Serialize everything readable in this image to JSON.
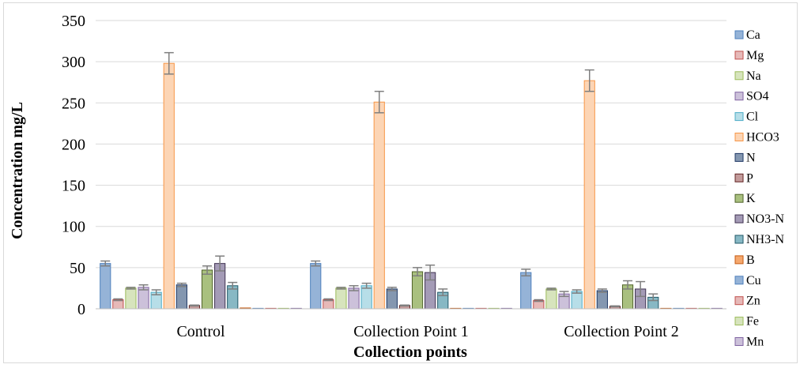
{
  "chart_data": {
    "type": "bar",
    "title": "",
    "xlabel": "Collection points",
    "ylabel": "Concentration mg/L",
    "ylim": [
      0,
      350
    ],
    "yticks": [
      "0",
      "50",
      "100",
      "150",
      "200",
      "250",
      "300",
      "350"
    ],
    "grid": true,
    "legend_position": "right",
    "error_bars": true,
    "categories": [
      "Control",
      "Collection Point 1",
      "Collection Point 2"
    ],
    "series": [
      {
        "name": "Ca",
        "color": "#95b3d7",
        "stroke": "#4f81bd",
        "values": [
          55,
          55,
          44
        ],
        "errors": [
          3,
          3,
          4
        ]
      },
      {
        "name": "Mg",
        "color": "#e6b9b8",
        "stroke": "#c0504d",
        "values": [
          11,
          11,
          10
        ],
        "errors": [
          1,
          1,
          1
        ]
      },
      {
        "name": "Na",
        "color": "#d7e4bd",
        "stroke": "#9bbb59",
        "values": [
          25,
          25,
          24
        ],
        "errors": [
          1,
          1,
          1
        ]
      },
      {
        "name": "SO4",
        "color": "#ccc1da",
        "stroke": "#8064a2",
        "values": [
          26,
          25,
          18
        ],
        "errors": [
          3,
          3,
          3
        ]
      },
      {
        "name": "Cl",
        "color": "#b7dee8",
        "stroke": "#4bacc6",
        "values": [
          20,
          28,
          21
        ],
        "errors": [
          3,
          3,
          2
        ]
      },
      {
        "name": "HCO3",
        "color": "#fcd5b5",
        "stroke": "#f79646",
        "values": [
          298,
          251,
          277
        ],
        "errors": [
          13,
          13,
          13
        ]
      },
      {
        "name": "N",
        "color": "#8497b0",
        "stroke": "#1f3864",
        "values": [
          29,
          24,
          22
        ],
        "errors": [
          2,
          2,
          2
        ]
      },
      {
        "name": "P",
        "color": "#c39b9b",
        "stroke": "#632523",
        "values": [
          4,
          4,
          3
        ],
        "errors": [
          0.5,
          0.5,
          0.5
        ]
      },
      {
        "name": "K",
        "color": "#a9c07f",
        "stroke": "#4f6228",
        "values": [
          47,
          45,
          29
        ],
        "errors": [
          5,
          5,
          5
        ]
      },
      {
        "name": "NO3-N",
        "color": "#a49bb6",
        "stroke": "#3f3151",
        "values": [
          55,
          44,
          24
        ],
        "errors": [
          9,
          9,
          9
        ]
      },
      {
        "name": "NH3-N",
        "color": "#87b8c4",
        "stroke": "#215968",
        "values": [
          28,
          20,
          14
        ],
        "errors": [
          4,
          4,
          4
        ]
      },
      {
        "name": "B",
        "color": "#f5a86e",
        "stroke": "#c55a11",
        "values": [
          1,
          0.5,
          0.5
        ],
        "errors": [
          0,
          0,
          0
        ]
      },
      {
        "name": "Cu",
        "color": "#95b3d7",
        "stroke": "#4f81bd",
        "values": [
          0.3,
          0.3,
          0.3
        ],
        "errors": [
          0,
          0,
          0
        ]
      },
      {
        "name": "Zn",
        "color": "#e6b9b8",
        "stroke": "#c0504d",
        "values": [
          0.3,
          0.3,
          0.3
        ],
        "errors": [
          0,
          0,
          0
        ]
      },
      {
        "name": "Fe",
        "color": "#d7e4bd",
        "stroke": "#9bbb59",
        "values": [
          0.3,
          0.3,
          0.3
        ],
        "errors": [
          0,
          0,
          0
        ]
      },
      {
        "name": "Mn",
        "color": "#ccc1da",
        "stroke": "#8064a2",
        "values": [
          0.3,
          0.3,
          0.3
        ],
        "errors": [
          0,
          0,
          0
        ]
      }
    ]
  }
}
